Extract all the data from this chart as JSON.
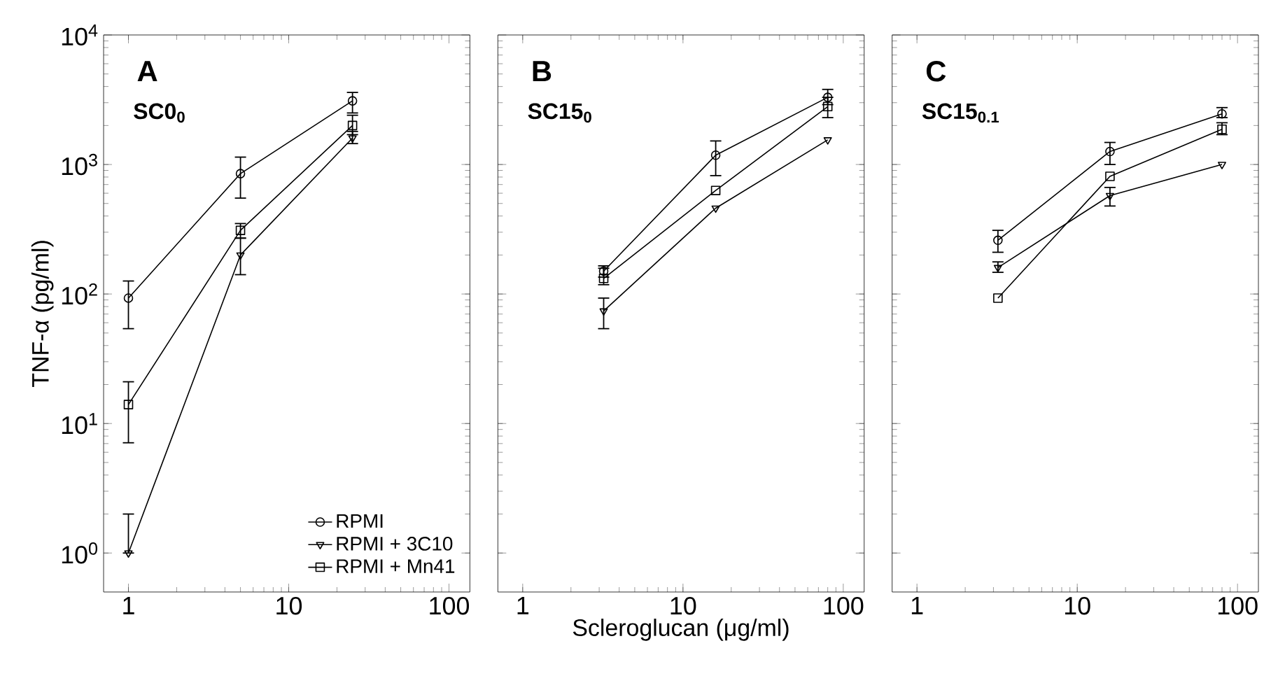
{
  "chart_data": [
    {
      "type": "line",
      "log": "xy",
      "ylabel": "TNF-α (pg/ml)",
      "x": [
        1,
        5,
        25
      ],
      "xlim": [
        0.7,
        135
      ],
      "ylim": [
        0.5,
        10000
      ],
      "xticks": [
        1,
        10,
        100
      ],
      "yticks": [
        {
          "value": 1,
          "label": "10$^{0}$"
        },
        {
          "value": 10,
          "label": "10$^{1}$"
        },
        {
          "value": 100,
          "label": "10$^{2}$"
        },
        {
          "value": 1000,
          "label": "10$^{3}$"
        },
        {
          "value": 10000,
          "label": "10$^{4}$"
        }
      ],
      "annotations": [
        "A",
        "SC0$_{0}$"
      ],
      "legend": "bottom right",
      "series": [
        {
          "name": "RPMI",
          "color": "#000000",
          "marker": "circle",
          "values": [
            93,
            850,
            3100
          ],
          "errors": [
            [
              54,
              126
            ],
            [
              550,
              1140
            ],
            [
              2500,
              3600
            ]
          ]
        },
        {
          "name": "RPMI + 3C10",
          "color": "#000000",
          "marker": "triangle",
          "values": [
            1.0,
            200,
            1600
          ],
          "errors": [
            [
              1.0,
              2.0
            ],
            [
              141,
              270
            ],
            [
              1450,
              1800
            ]
          ]
        },
        {
          "name": "RPMI + Mn41",
          "color": "#000000",
          "marker": "square",
          "values": [
            14,
            310,
            2000
          ],
          "errors": [
            [
              7.1,
              21
            ],
            [
              270,
              350
            ],
            [
              1700,
              2400
            ]
          ]
        }
      ]
    },
    {
      "type": "line",
      "log": "xy",
      "xlabel": "Scleroglucan (μg/ml)",
      "x": [
        3.2,
        16,
        80
      ],
      "xlim": [
        0.7,
        135
      ],
      "ylim": [
        0.5,
        10000
      ],
      "xticks": [
        1,
        10,
        100
      ],
      "yticks": [
        {
          "value": 1,
          "label": null
        },
        {
          "value": 10,
          "label": null
        },
        {
          "value": 100,
          "label": null
        },
        {
          "value": 1000,
          "label": null
        },
        {
          "value": 10000,
          "label": null
        }
      ],
      "tick_labels": "x",
      "annotations": [
        "B",
        "SC15$_{0}$"
      ],
      "series": [
        {
          "color": "#000000",
          "marker": "circle",
          "values": [
            150,
            1180,
            3300
          ],
          "errors": [
            [
              135,
              165
            ],
            [
              820,
              1520
            ],
            [
              2900,
              3800
            ]
          ]
        },
        {
          "color": "#000000",
          "marker": "triangle",
          "values": [
            74,
            460,
            1550
          ],
          "errors": [
            [
              54,
              93
            ],
            null,
            null
          ]
        },
        {
          "color": "#000000",
          "marker": "square",
          "values": [
            132,
            630,
            2800
          ],
          "errors": [
            [
              118,
              158
            ],
            null,
            [
              2300,
              3300
            ]
          ]
        }
      ]
    },
    {
      "type": "line",
      "log": "xy",
      "x": [
        3.2,
        16,
        80
      ],
      "xlim": [
        0.7,
        135
      ],
      "ylim": [
        0.5,
        10000
      ],
      "xticks": [
        1,
        10,
        100
      ],
      "yticks": [
        {
          "value": 1,
          "label": null
        },
        {
          "value": 10,
          "label": null
        },
        {
          "value": 100,
          "label": null
        },
        {
          "value": 1000,
          "label": null
        },
        {
          "value": 10000,
          "label": null
        }
      ],
      "tick_labels": "x",
      "annotations": [
        "C",
        "SC15$_{0.1}$"
      ],
      "series": [
        {
          "color": "#000000",
          "marker": "circle",
          "values": [
            260,
            1260,
            2460
          ],
          "errors": [
            [
              210,
              310
            ],
            [
              1000,
              1480
            ],
            [
              2300,
              2750
            ]
          ]
        },
        {
          "color": "#000000",
          "marker": "triangle",
          "values": [
            160,
            575,
            1000
          ],
          "errors": [
            [
              147,
              177
            ],
            [
              478,
              665
            ],
            null
          ]
        },
        {
          "color": "#000000",
          "marker": "square",
          "values": [
            93,
            810,
            1870
          ],
          "errors": [
            null,
            null,
            [
              1700,
              2100
            ]
          ]
        }
      ]
    }
  ]
}
